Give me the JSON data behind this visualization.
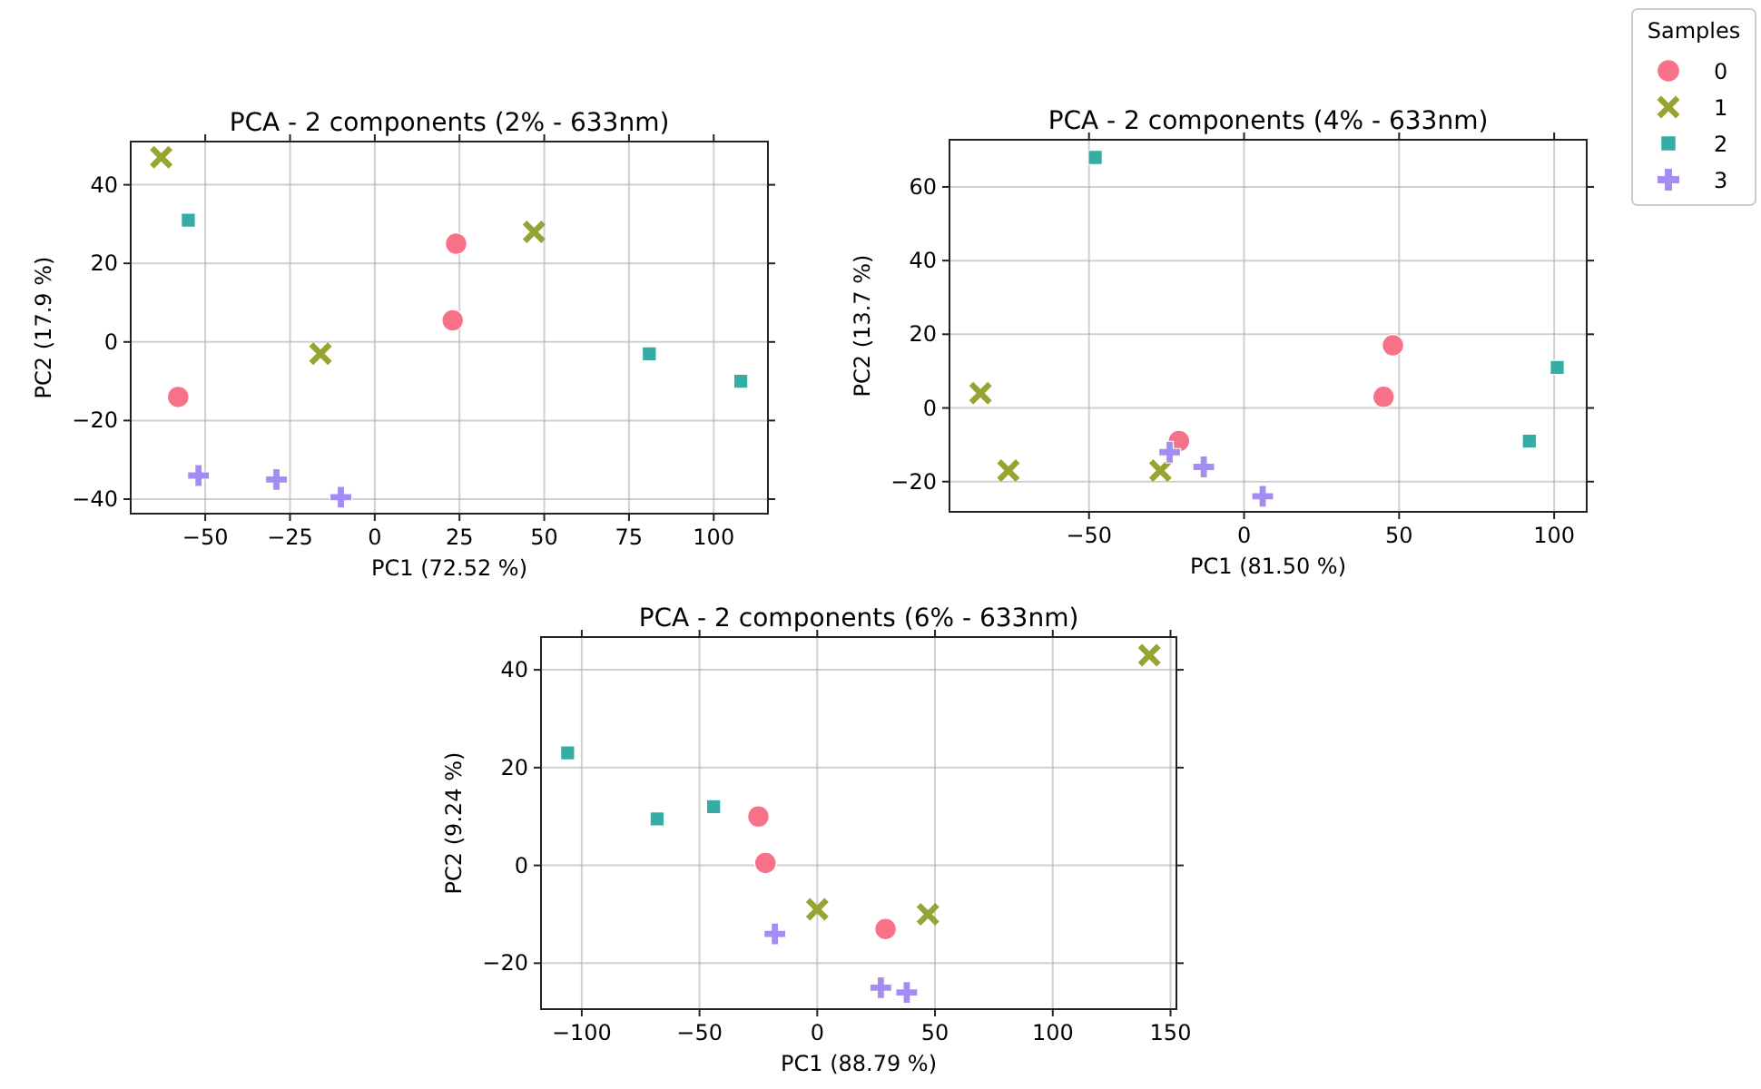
{
  "chart_data": [
    {
      "type": "scatter",
      "title": "PCA - 2 components (2% - 633nm)",
      "xlabel": "PC1 (72.52 %)",
      "ylabel": "PC2 (17.9 %)",
      "xlim": [
        -72,
        116
      ],
      "ylim": [
        -43.7,
        51
      ],
      "xticks": [
        -50,
        -25,
        0,
        25,
        50,
        75,
        100
      ],
      "yticks": [
        -40,
        -20,
        0,
        20,
        40
      ],
      "grid": true,
      "series": [
        {
          "color": "#f77189",
          "marker": "circle",
          "x": [
            -58,
            23,
            24
          ],
          "values": [
            -14,
            5.5,
            25
          ]
        },
        {
          "color": "#97a431",
          "marker": "x",
          "x": [
            -63,
            -16,
            47
          ],
          "values": [
            47,
            -3,
            28
          ]
        },
        {
          "color": "#36ada4",
          "marker": "square",
          "x": [
            -55,
            81,
            108
          ],
          "values": [
            31,
            -3,
            -10
          ]
        },
        {
          "color": "#a48cf4",
          "marker": "cross",
          "x": [
            -52,
            -29,
            -10
          ],
          "values": [
            -34,
            -35,
            -39.5
          ]
        }
      ]
    },
    {
      "type": "scatter",
      "title": "PCA - 2 components (4% - 633nm)",
      "xlabel": "PC1 (81.50 %)",
      "ylabel": "PC2 (13.7 %)",
      "xlim": [
        -95,
        110.5
      ],
      "ylim": [
        -28.2,
        72.8
      ],
      "xticks": [
        -50,
        0,
        50,
        100
      ],
      "yticks": [
        -20,
        0,
        20,
        40,
        60
      ],
      "grid": true,
      "legend": "right",
      "legend_title": "Samples",
      "series": [
        {
          "name": "0",
          "color": "#f77189",
          "marker": "circle",
          "x": [
            -21,
            45,
            48
          ],
          "values": [
            -9,
            3,
            17
          ]
        },
        {
          "name": "1",
          "color": "#97a431",
          "marker": "x",
          "x": [
            -85,
            -76,
            -27
          ],
          "values": [
            4,
            -17,
            -17
          ]
        },
        {
          "name": "2",
          "color": "#36ada4",
          "marker": "square",
          "x": [
            -48,
            92,
            101
          ],
          "values": [
            68,
            -9,
            11
          ]
        },
        {
          "name": "3",
          "color": "#a48cf4",
          "marker": "cross",
          "x": [
            -24,
            -13,
            6
          ],
          "values": [
            -12,
            -16,
            -24
          ]
        }
      ]
    },
    {
      "type": "scatter",
      "title": "PCA - 2 components (6% - 633nm)",
      "xlabel": "PC1 (88.79 %)",
      "ylabel": "PC2 (9.24 %)",
      "xlim": [
        -117.3,
        152.5
      ],
      "ylim": [
        -29.4,
        46.7
      ],
      "xticks": [
        -100,
        -50,
        0,
        50,
        100,
        150
      ],
      "yticks": [
        -20,
        0,
        20,
        40
      ],
      "grid": true,
      "series": [
        {
          "color": "#f77189",
          "marker": "circle",
          "x": [
            -25,
            -22,
            29
          ],
          "values": [
            10,
            0.5,
            -13
          ]
        },
        {
          "color": "#97a431",
          "marker": "x",
          "x": [
            0,
            47,
            141
          ],
          "values": [
            -9,
            -10,
            43
          ]
        },
        {
          "color": "#36ada4",
          "marker": "square",
          "x": [
            -106,
            -68,
            -44
          ],
          "values": [
            23,
            9.5,
            12
          ]
        },
        {
          "color": "#a48cf4",
          "marker": "cross",
          "x": [
            -18,
            27,
            38
          ],
          "values": [
            -14,
            -25,
            -26
          ]
        }
      ]
    }
  ]
}
